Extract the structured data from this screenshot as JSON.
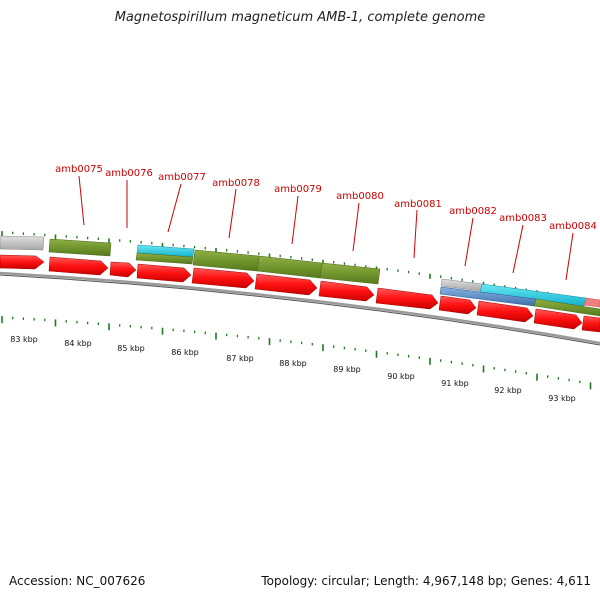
{
  "title": "Magnetospirillum magneticum AMB-1, complete genome",
  "accession": "Accession: NC_007626",
  "summary": "Topology: circular; Length: 4,967,148 bp; Genes: 4,611",
  "ruler_labels": [
    "83 kbp",
    "84 kbp",
    "85 kbp",
    "86 kbp",
    "87 kbp",
    "88 kbp",
    "89 kbp",
    "90 kbp",
    "91 kbp",
    "92 kbp",
    "93 kbp"
  ],
  "gene_labels": [
    "amb0075",
    "amb0076",
    "amb0077",
    "amb0078",
    "amb0079",
    "amb0080",
    "amb0081",
    "amb0082",
    "amb0083",
    "amb0084"
  ],
  "colors": {
    "label_red": "#cc0000",
    "gene_red": "#ff1010",
    "green_feature": "#6b8e23",
    "gray_feature": "#b8b8b8",
    "cyan_feature": "#19c7e0",
    "blue_feature": "#4f86c6",
    "pink_feature": "#f08080",
    "backbone": "#808080",
    "tick_green": "#1f7a1f"
  }
}
